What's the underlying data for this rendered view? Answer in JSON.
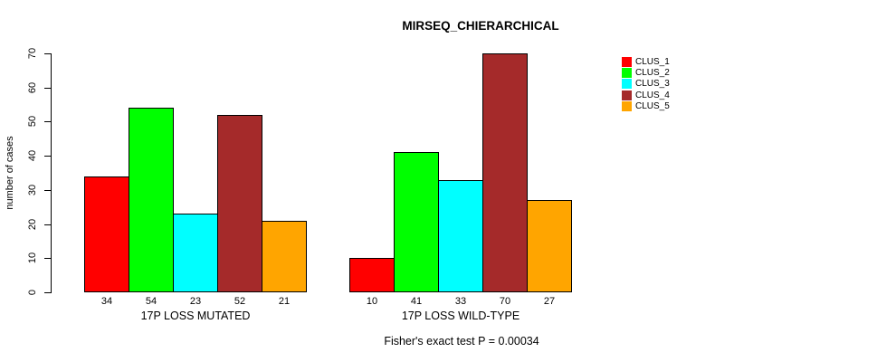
{
  "chart_data": {
    "type": "bar",
    "title": "MIRSEQ_CHIERARCHICAL",
    "ylabel": "number of cases",
    "annotation": "Fisher's exact test P = 0.00034",
    "categories": [
      "17P LOSS MUTATED",
      "17P LOSS WILD-TYPE"
    ],
    "series": [
      "CLUS_1",
      "CLUS_2",
      "CLUS_3",
      "CLUS_4",
      "CLUS_5"
    ],
    "series_colors": [
      "#ff0000",
      "#00ff00",
      "#00ffff",
      "#a52a2a",
      "#ffa500"
    ],
    "groups": [
      {
        "label": "17P LOSS MUTATED",
        "values": [
          34,
          54,
          23,
          52,
          21
        ]
      },
      {
        "label": "17P LOSS WILD-TYPE",
        "values": [
          10,
          41,
          33,
          70,
          27
        ]
      }
    ],
    "yticks": [
      0,
      10,
      20,
      30,
      40,
      50,
      60,
      70
    ],
    "ylim": [
      0,
      70
    ],
    "grid": false,
    "legend_position": "right",
    "bar_border_color": "#000000",
    "background_color": "#ffffff"
  }
}
